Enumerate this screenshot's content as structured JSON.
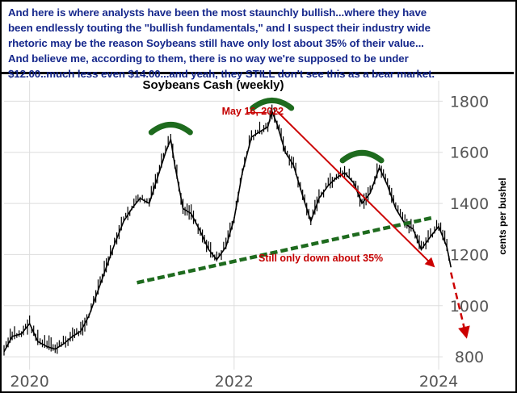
{
  "header": {
    "lines": [
      "And here is where analysts have been the most staunchly bullish...where they have",
      "been endlessly touting the \"bullish fundamentals,\" and I suspect their industry wide",
      "rhetoric may be the reason Soybeans still have only lost about 35% of their value...",
      "And believe me, according to them, there is no way we're supposed to be under",
      "$12.00..much less even $14.00...and yeah, they STILL don't see this as a bear market."
    ],
    "color": "#16288c"
  },
  "chart_data": {
    "type": "line",
    "title": "Soybeans Cash (weekly)",
    "xlabel": "",
    "ylabel": "cents per bushel",
    "x_ticks": [
      "2020",
      "2022",
      "2024"
    ],
    "y_ticks": [
      800,
      1000,
      1200,
      1400,
      1600,
      1800
    ],
    "xlim": [
      2019.75,
      2024.45
    ],
    "ylim": [
      750,
      1880
    ],
    "grid": true,
    "series": [
      {
        "x": [
          2019.75,
          2019.83,
          2019.92,
          2020.0,
          2020.08,
          2020.17,
          2020.25,
          2020.33,
          2020.42,
          2020.5,
          2020.58,
          2020.67,
          2020.75,
          2020.83,
          2020.92,
          2021.0,
          2021.08,
          2021.17,
          2021.25,
          2021.33,
          2021.38,
          2021.42,
          2021.5,
          2021.58,
          2021.67,
          2021.75,
          2021.83,
          2021.92,
          2022.0,
          2022.08,
          2022.17,
          2022.25,
          2022.33,
          2022.37,
          2022.42,
          2022.5,
          2022.58,
          2022.67,
          2022.75,
          2022.83,
          2022.92,
          2023.0,
          2023.08,
          2023.17,
          2023.25,
          2023.33,
          2023.42,
          2023.5,
          2023.58,
          2023.67,
          2023.75,
          2023.83,
          2023.92,
          2024.0,
          2024.08,
          2024.12
        ],
        "y": [
          820,
          880,
          890,
          930,
          860,
          840,
          830,
          850,
          880,
          900,
          960,
          1060,
          1150,
          1240,
          1330,
          1380,
          1420,
          1400,
          1500,
          1600,
          1650,
          1550,
          1380,
          1360,
          1290,
          1220,
          1180,
          1230,
          1340,
          1520,
          1660,
          1680,
          1700,
          1760,
          1710,
          1600,
          1550,
          1430,
          1330,
          1420,
          1470,
          1500,
          1520,
          1480,
          1400,
          1440,
          1540,
          1470,
          1380,
          1320,
          1300,
          1220,
          1270,
          1310,
          1230,
          1150
        ]
      }
    ],
    "annotations": {
      "peak_label": "May 16, 2022",
      "decline_label": "Still only down about 35%"
    },
    "colors": {
      "price": "#000000",
      "trendline": "#1e6b1e",
      "arrows": "#cc0000",
      "arcs": "#1e6b1e",
      "grid": "#dddddd"
    }
  }
}
